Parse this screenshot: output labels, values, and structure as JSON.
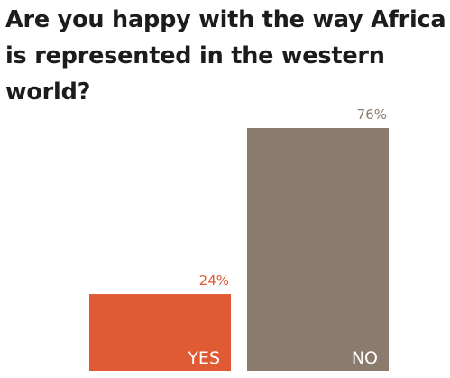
{
  "chart_data": {
    "type": "bar",
    "title": "Are you happy with the way Africa is represented in the western world?",
    "categories": [
      "YES",
      "NO"
    ],
    "values": [
      24,
      76
    ],
    "value_labels": [
      "24%",
      "76%"
    ],
    "ylim": [
      0,
      100
    ],
    "grid": false,
    "legend": "none",
    "colors": [
      "#e05a33",
      "#8b7b6c"
    ]
  }
}
